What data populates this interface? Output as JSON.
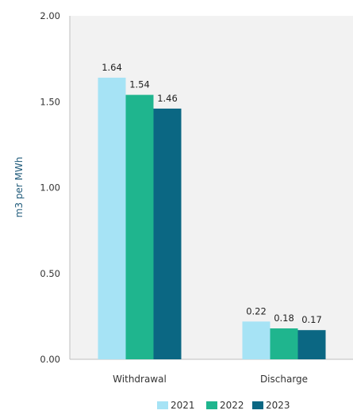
{
  "chart_data": {
    "type": "bar",
    "categories": [
      "Withdrawal",
      "Discharge"
    ],
    "series": [
      {
        "name": "2021",
        "values": [
          1.64,
          0.22
        ],
        "color": "#a6e3f5"
      },
      {
        "name": "2022",
        "values": [
          1.54,
          0.18
        ],
        "color": "#1fb58e"
      },
      {
        "name": "2023",
        "values": [
          1.46,
          0.17
        ],
        "color": "#0b6783"
      }
    ],
    "xlabel": "",
    "ylabel": "m3 per MWh",
    "ylim": [
      0,
      2.0
    ],
    "yticks": [
      "0.00",
      "0.50",
      "1.00",
      "1.50",
      "2.00"
    ],
    "grid": false,
    "plot_background": "#f2f2f2",
    "legend_position": "bottom-center"
  }
}
